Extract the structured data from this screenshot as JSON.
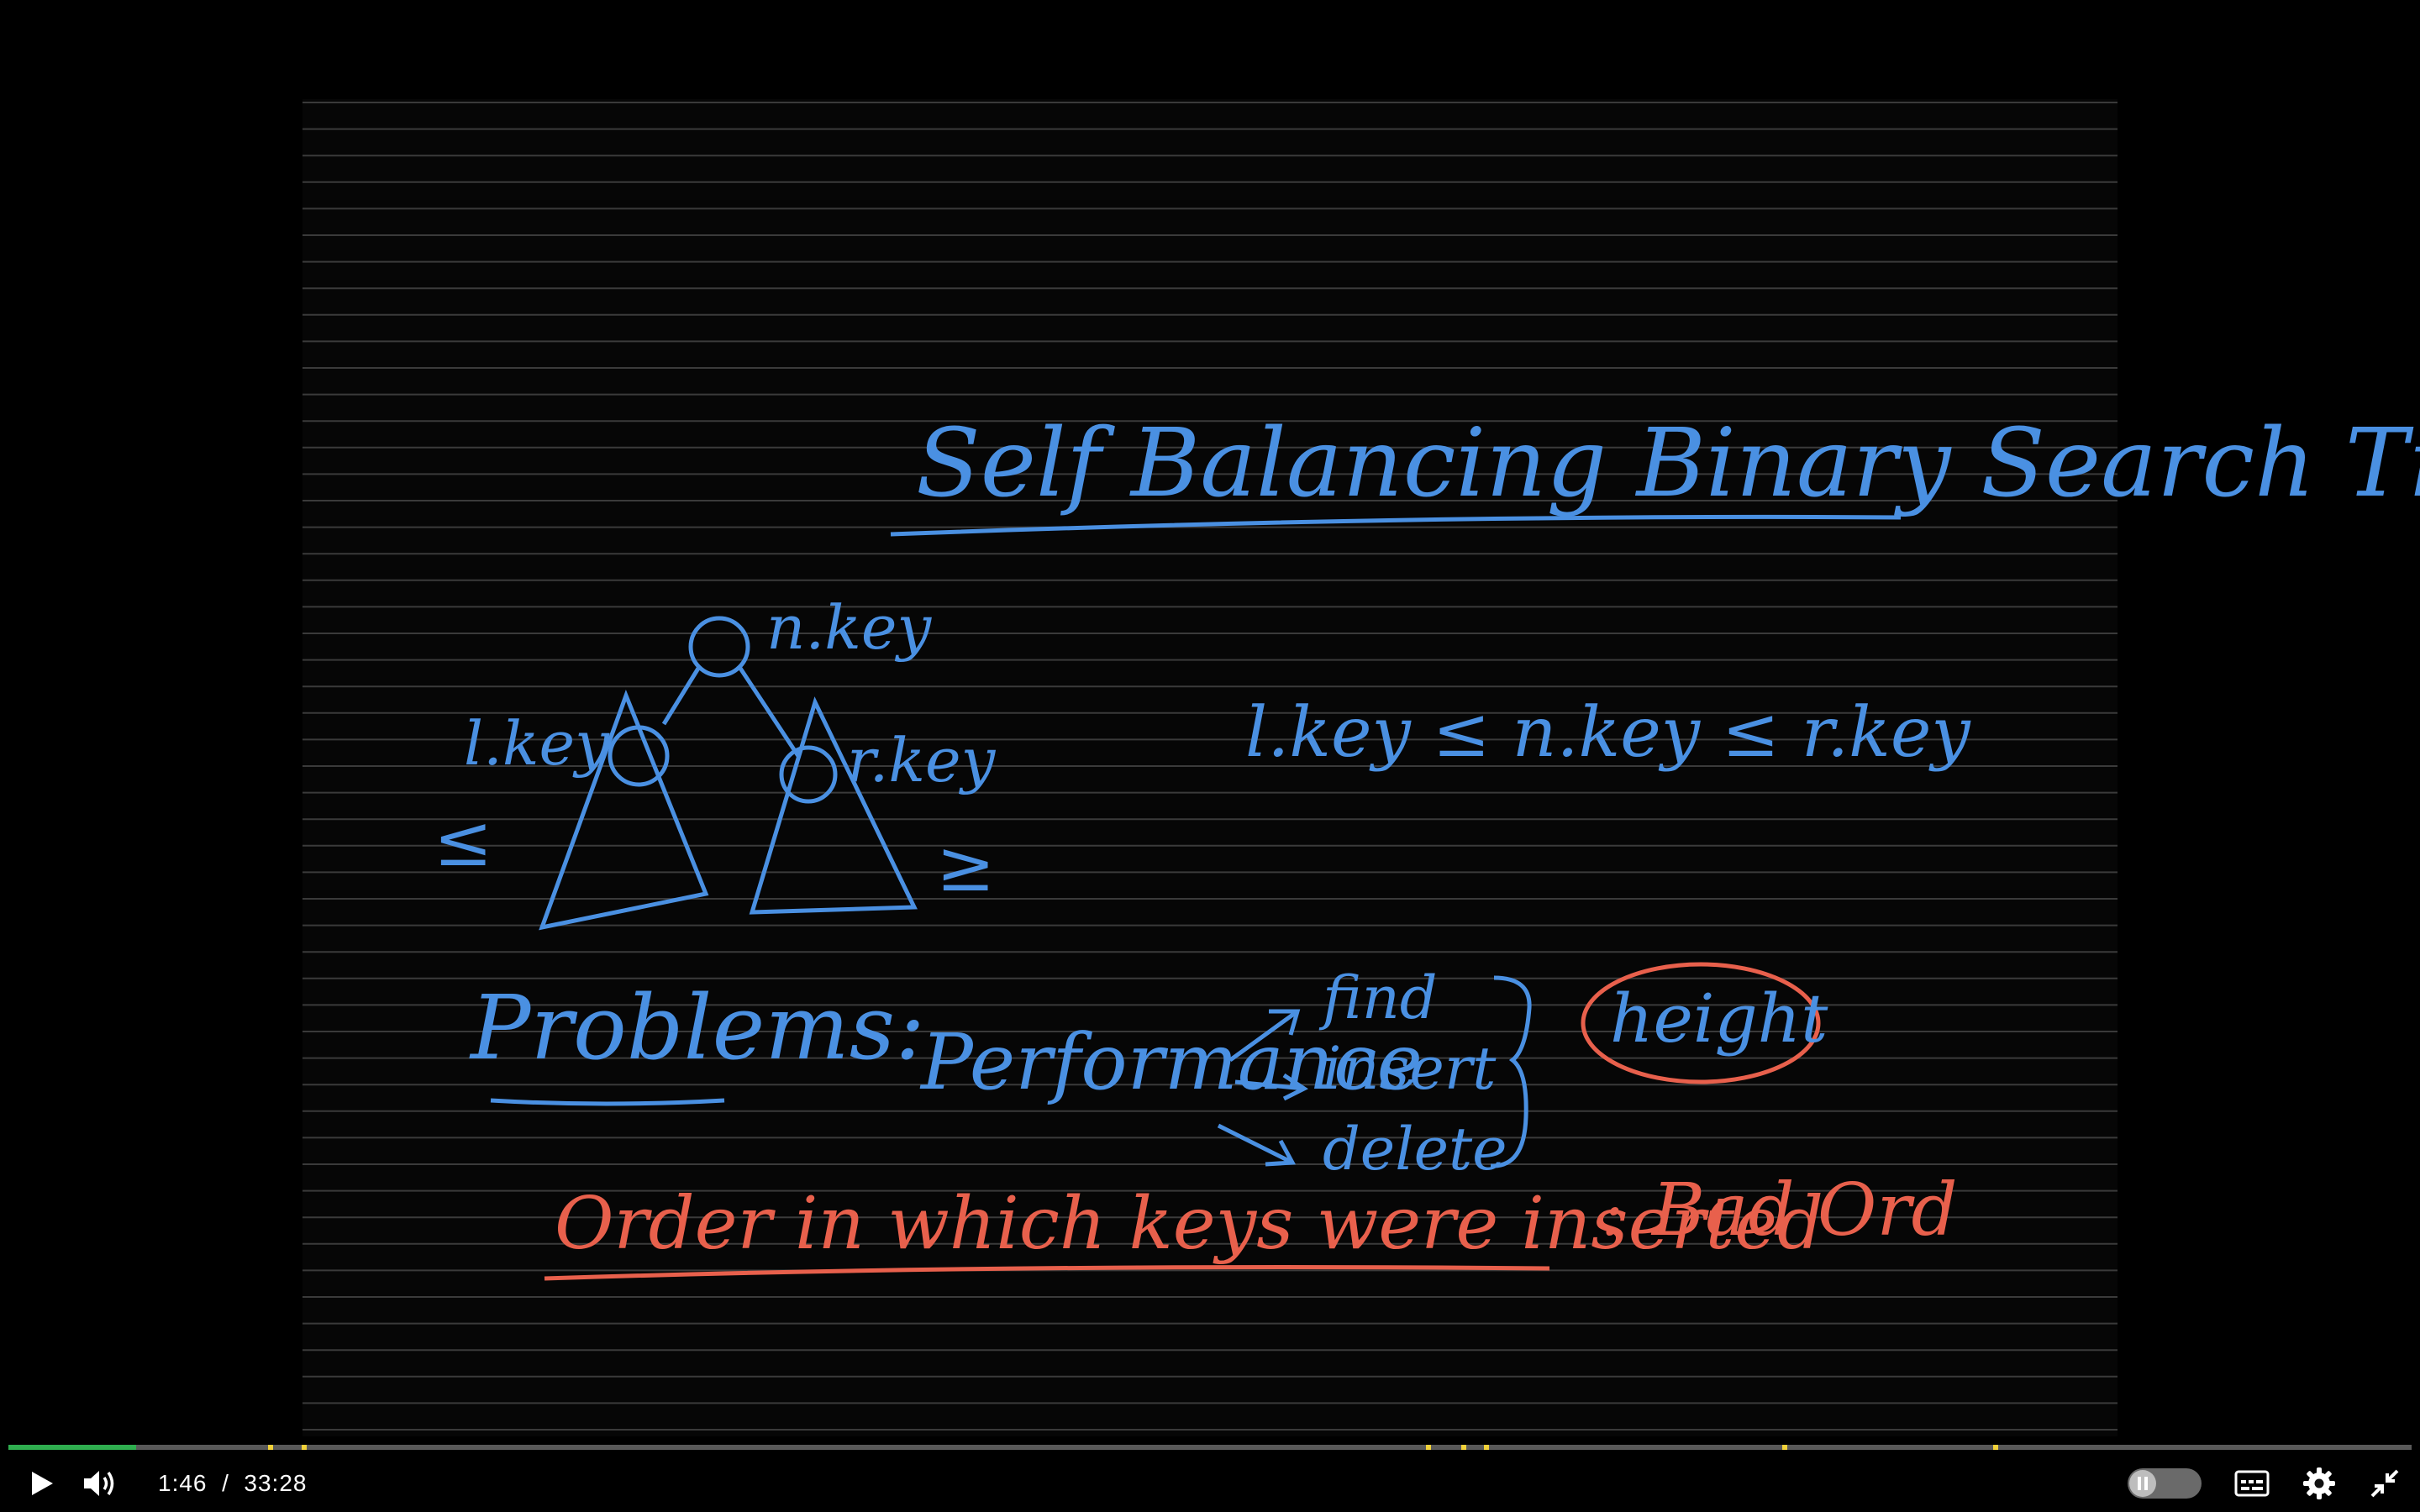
{
  "whiteboard": {
    "title": "Self Balancing Binary Search Trees",
    "root_label": "n.key",
    "left_label": "l.key",
    "right_label": "r.key",
    "left_relation": "≤",
    "right_relation": "≥",
    "invariant": "l.key ≤ n.key ≤ r.key",
    "problems_label": "Problems:",
    "performance_label": "Performance",
    "operations": [
      "find",
      "insert",
      "delete"
    ],
    "height_label": "height",
    "order_note": "Order in which keys were inserted",
    "order_colon": ":",
    "bad_order": "Bad Ord",
    "ink_blue": "#4a90e2",
    "ink_red": "#e8604c"
  },
  "player": {
    "current_time": "1:46",
    "separator": "/",
    "duration": "33:28",
    "progress_fraction": 0.053,
    "chapter_marker_fractions": [
      0.108,
      0.122,
      0.59,
      0.6045,
      0.614,
      0.738,
      0.826
    ],
    "progress_color": "#2fae4f",
    "marker_color": "#f2d23a",
    "icons": {
      "play": "play-icon",
      "volume": "volume-icon",
      "speed": "playback-speed-toggle",
      "captions": "captions-icon",
      "settings": "gear-icon",
      "exit_fullscreen": "exit-fullscreen-icon"
    }
  }
}
